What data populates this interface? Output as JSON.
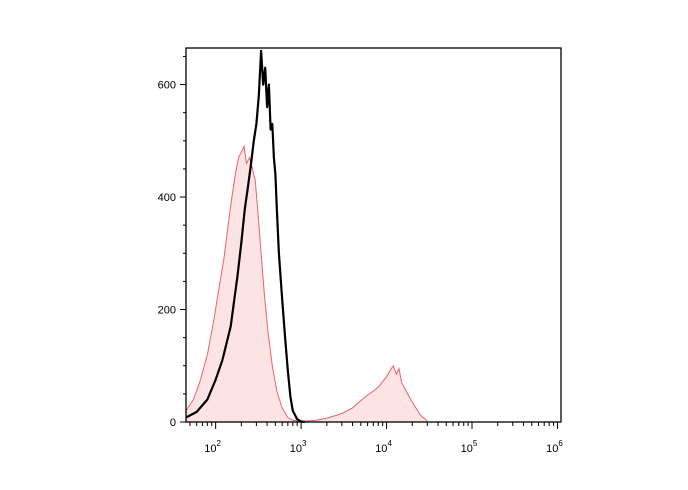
{
  "chart_data": {
    "type": "area",
    "title": "",
    "xlabel": "",
    "ylabel": "",
    "x_scale": "log",
    "xlim": [
      45,
      1100000
    ],
    "ylim": [
      0,
      665
    ],
    "grid": false,
    "y_ticks": [
      {
        "value": 0,
        "label": "0"
      },
      {
        "value": 200,
        "label": "200"
      },
      {
        "value": 400,
        "label": "400"
      },
      {
        "value": 600,
        "label": "600"
      }
    ],
    "x_ticks": [
      {
        "value": 100,
        "base": "10",
        "exp": "2"
      },
      {
        "value": 1000,
        "base": "10",
        "exp": "3"
      },
      {
        "value": 10000,
        "base": "10",
        "exp": "4"
      },
      {
        "value": 100000,
        "base": "10",
        "exp": "5"
      },
      {
        "value": 1000000,
        "base": "10",
        "exp": "6"
      }
    ],
    "series": [
      {
        "style": "filled",
        "color": "#e8636b",
        "fill": "#fde4e4",
        "x": [
          45,
          55,
          65,
          80,
          95,
          110,
          125,
          140,
          155,
          170,
          185,
          200,
          215,
          230,
          250,
          270,
          290,
          310,
          340,
          370,
          410,
          460,
          520,
          600,
          700,
          800,
          1000,
          1500,
          2000,
          3000,
          4000,
          5000,
          6000,
          7000,
          8000,
          9000,
          10000,
          11000,
          12000,
          13000,
          14000,
          15000,
          17000,
          20000,
          25000,
          30000
        ],
        "y": [
          20,
          40,
          70,
          120,
          180,
          240,
          290,
          350,
          400,
          440,
          470,
          480,
          490,
          460,
          470,
          450,
          430,
          380,
          300,
          230,
          160,
          100,
          55,
          25,
          8,
          3,
          1,
          3,
          7,
          15,
          25,
          38,
          48,
          55,
          62,
          72,
          80,
          92,
          100,
          85,
          95,
          70,
          55,
          35,
          12,
          2
        ]
      },
      {
        "style": "line",
        "color": "#000000",
        "x": [
          45,
          60,
          80,
          100,
          120,
          150,
          180,
          200,
          220,
          240,
          260,
          280,
          300,
          320,
          340,
          360,
          380,
          400,
          420,
          440,
          460,
          480,
          500,
          520,
          550,
          600,
          650,
          700,
          750,
          800,
          900,
          1000,
          1100
        ],
        "y": [
          8,
          18,
          40,
          75,
          110,
          170,
          260,
          320,
          380,
          420,
          460,
          500,
          530,
          580,
          660,
          600,
          630,
          560,
          600,
          520,
          530,
          470,
          440,
          380,
          300,
          220,
          150,
          90,
          45,
          20,
          5,
          1,
          0
        ]
      }
    ]
  }
}
